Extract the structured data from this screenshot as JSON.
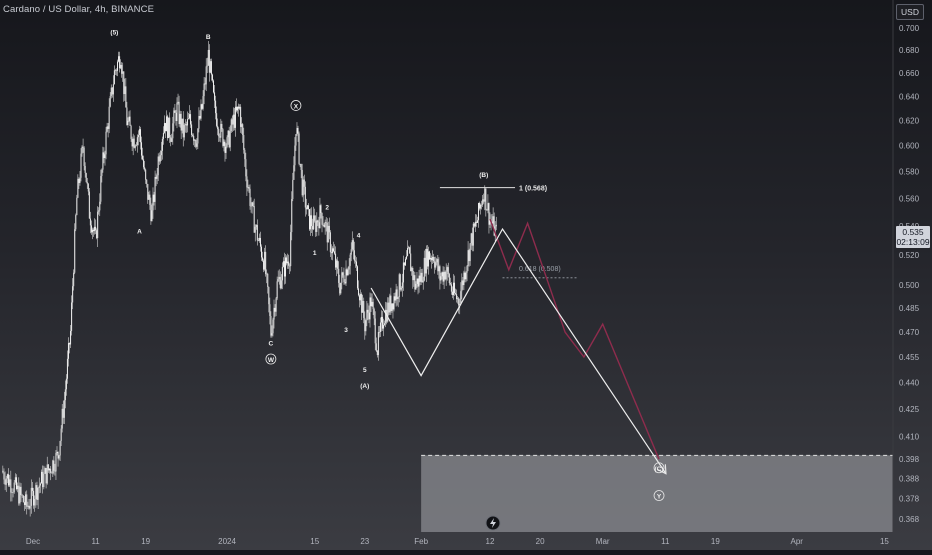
{
  "header": {
    "title": "Cardano / US Dollar, 4h, BINANCE"
  },
  "axis": {
    "currency": "USD",
    "current_price": "0.535",
    "countdown": "02:13:09"
  },
  "chart_data": {
    "type": "candlestick",
    "symbol": "ADA/USD",
    "timeframe": "4h",
    "exchange": "BINANCE",
    "price_scale": "log",
    "y_ticks": [
      0.7,
      0.68,
      0.66,
      0.64,
      0.62,
      0.6,
      0.58,
      0.56,
      0.54,
      0.52,
      0.5,
      0.485,
      0.47,
      0.455,
      0.44,
      0.425,
      0.41,
      0.398,
      0.388,
      0.378,
      0.368
    ],
    "y_tick_labels": [
      "0.700",
      "0.680",
      "0.660",
      "0.640",
      "0.620",
      "0.600",
      "0.580",
      "0.560",
      "0.540",
      "0.520",
      "0.500",
      "0.485",
      "0.470",
      "0.455",
      "0.440",
      "0.425",
      "0.410",
      "0.398",
      "0.388",
      "0.378",
      "0.368"
    ],
    "x_ticks": [
      "2023-12-01",
      "2023-12-11",
      "2023-12-19",
      "2024-01-01",
      "2024-01-15",
      "2024-01-23",
      "2024-02-01",
      "2024-02-12",
      "2024-02-20",
      "2024-03-01",
      "2024-03-11",
      "2024-03-19",
      "2024-04-01",
      "2024-04-15"
    ],
    "x_tick_labels": [
      "Dec",
      "11",
      "19",
      "2024",
      "15",
      "23",
      "Feb",
      "12",
      "20",
      "Mar",
      "11",
      "19",
      "Apr",
      "15"
    ],
    "close_path": [
      [
        "2023-11-26",
        0.392
      ],
      [
        "2023-11-28",
        0.384
      ],
      [
        "2023-11-30",
        0.374
      ],
      [
        "2023-12-02",
        0.385
      ],
      [
        "2023-12-04",
        0.395
      ],
      [
        "2023-12-05",
        0.4
      ],
      [
        "2023-12-06",
        0.43
      ],
      [
        "2023-12-07",
        0.47
      ],
      [
        "2023-12-08",
        0.56
      ],
      [
        "2023-12-09",
        0.6
      ],
      [
        "2023-12-10",
        0.55
      ],
      [
        "2023-12-11",
        0.53
      ],
      [
        "2023-12-12",
        0.58
      ],
      [
        "2023-12-13",
        0.62
      ],
      [
        "2023-12-14",
        0.66
      ],
      [
        "2023-12-15",
        0.677
      ],
      [
        "2023-12-16",
        0.62
      ],
      [
        "2023-12-17",
        0.605
      ],
      [
        "2023-12-18",
        0.61
      ],
      [
        "2023-12-19",
        0.57
      ],
      [
        "2023-12-20",
        0.548
      ],
      [
        "2023-12-21",
        0.59
      ],
      [
        "2023-12-22",
        0.62
      ],
      [
        "2023-12-23",
        0.61
      ],
      [
        "2023-12-24",
        0.63
      ],
      [
        "2023-12-25",
        0.61
      ],
      [
        "2023-12-26",
        0.62
      ],
      [
        "2023-12-27",
        0.605
      ],
      [
        "2023-12-28",
        0.63
      ],
      [
        "2023-12-29",
        0.676
      ],
      [
        "2023-12-30",
        0.63
      ],
      [
        "2023-12-31",
        0.61
      ],
      [
        "2024-01-01",
        0.6
      ],
      [
        "2024-01-02",
        0.62
      ],
      [
        "2024-01-03",
        0.63
      ],
      [
        "2024-01-04",
        0.58
      ],
      [
        "2024-01-05",
        0.55
      ],
      [
        "2024-01-06",
        0.53
      ],
      [
        "2024-01-07",
        0.515
      ],
      [
        "2024-01-08",
        0.47
      ],
      [
        "2024-01-09",
        0.5
      ],
      [
        "2024-01-10",
        0.51
      ],
      [
        "2024-01-11",
        0.52
      ],
      [
        "2024-01-12",
        0.617
      ],
      [
        "2024-01-13",
        0.57
      ],
      [
        "2024-01-14",
        0.545
      ],
      [
        "2024-01-15",
        0.54
      ],
      [
        "2024-01-16",
        0.55
      ],
      [
        "2024-01-17",
        0.535
      ],
      [
        "2024-01-18",
        0.52
      ],
      [
        "2024-01-19",
        0.5
      ],
      [
        "2024-01-20",
        0.51
      ],
      [
        "2024-01-21",
        0.525
      ],
      [
        "2024-01-22",
        0.5
      ],
      [
        "2024-01-23",
        0.475
      ],
      [
        "2024-01-24",
        0.49
      ],
      [
        "2024-01-25",
        0.46
      ],
      [
        "2024-01-26",
        0.48
      ],
      [
        "2024-01-27",
        0.487
      ],
      [
        "2024-01-28",
        0.495
      ],
      [
        "2024-01-29",
        0.505
      ],
      [
        "2024-01-30",
        0.52
      ],
      [
        "2024-01-31",
        0.5
      ],
      [
        "2024-02-01",
        0.505
      ],
      [
        "2024-02-02",
        0.52
      ],
      [
        "2024-02-03",
        0.52
      ],
      [
        "2024-02-04",
        0.505
      ],
      [
        "2024-02-05",
        0.51
      ],
      [
        "2024-02-06",
        0.495
      ],
      [
        "2024-02-07",
        0.49
      ],
      [
        "2024-02-08",
        0.51
      ],
      [
        "2024-02-09",
        0.53
      ],
      [
        "2024-02-10",
        0.545
      ],
      [
        "2024-02-11",
        0.566
      ],
      [
        "2024-02-12",
        0.545
      ],
      [
        "2024-02-13",
        0.535
      ]
    ],
    "horizontal_levels": [
      {
        "label": "1 (0.568)",
        "price": 0.568
      },
      {
        "label": "0.618 (0.508)",
        "price": 0.508
      }
    ],
    "support_zone": {
      "top": 0.4,
      "bottom": 0.36,
      "start": "2024-02-01"
    },
    "wave_labels": [
      {
        "text": "(5)",
        "date": "2023-12-14",
        "price": 0.694
      },
      {
        "text": "B",
        "date": "2023-12-29",
        "price": 0.69
      },
      {
        "text": "A",
        "date": "2023-12-18",
        "price": 0.535
      },
      {
        "text": "X",
        "date": "2024-01-12",
        "price": 0.63,
        "circled": true
      },
      {
        "text": "C",
        "date": "2024-01-08",
        "price": 0.462
      },
      {
        "text": "W",
        "date": "2024-01-08",
        "price": 0.452,
        "circled": true
      },
      {
        "text": "2",
        "date": "2024-01-17",
        "price": 0.552
      },
      {
        "text": "1",
        "date": "2024-01-15",
        "price": 0.52
      },
      {
        "text": "4",
        "date": "2024-01-22",
        "price": 0.532
      },
      {
        "text": "3",
        "date": "2024-01-20",
        "price": 0.47
      },
      {
        "text": "5",
        "date": "2024-01-23",
        "price": 0.446
      },
      {
        "text": "(A)",
        "date": "2024-01-23",
        "price": 0.437
      },
      {
        "text": "(B)",
        "date": "2024-02-11",
        "price": 0.576
      },
      {
        "text": "(C)",
        "date": "2024-03-10",
        "price": 0.392,
        "circled": true
      },
      {
        "text": "Y",
        "date": "2024-03-10",
        "price": 0.378,
        "circled": true
      }
    ],
    "projection_white": [
      [
        "2024-01-24",
        0.498
      ],
      [
        "2024-02-01",
        0.444
      ],
      [
        "2024-02-14",
        0.538
      ],
      [
        "2024-03-11",
        0.391
      ]
    ],
    "projection_red": [
      [
        "2024-02-12",
        0.545
      ],
      [
        "2024-02-15",
        0.51
      ],
      [
        "2024-02-18",
        0.542
      ],
      [
        "2024-02-21",
        0.505
      ],
      [
        "2024-02-24",
        0.47
      ],
      [
        "2024-02-27",
        0.455
      ],
      [
        "2024-03-01",
        0.475
      ],
      [
        "2024-03-10",
        0.398
      ]
    ]
  }
}
